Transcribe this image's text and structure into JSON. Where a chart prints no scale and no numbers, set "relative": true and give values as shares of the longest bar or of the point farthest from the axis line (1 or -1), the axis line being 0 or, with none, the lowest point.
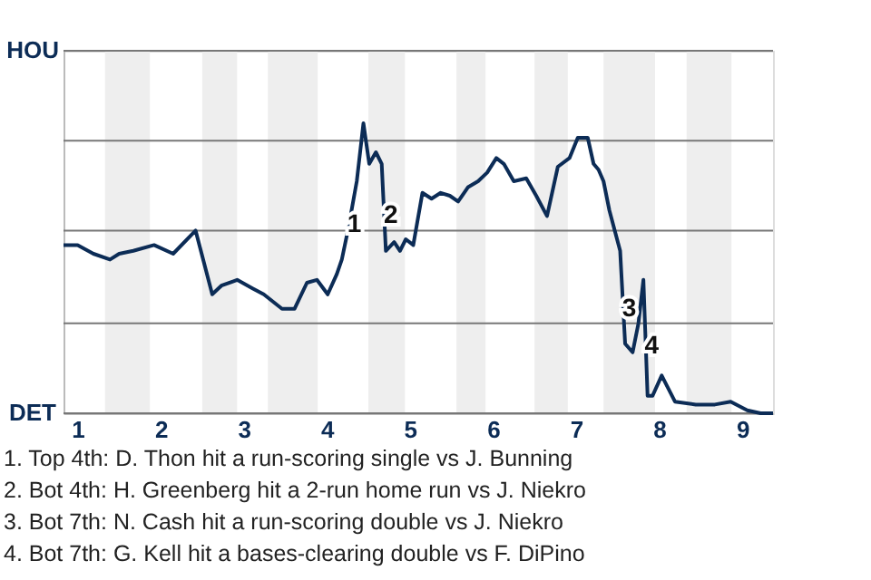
{
  "chart_data": {
    "type": "line",
    "relative": true,
    "x": [
      0.83,
      1,
      1.19,
      1.39,
      1.5,
      1.67,
      1.92,
      2.15,
      2.42,
      2.62,
      2.73,
      2.92,
      3.11,
      3.24,
      3.46,
      3.61,
      3.76,
      3.88,
      4.01,
      4.12,
      4.18,
      4.26,
      4.36,
      4.44,
      4.51,
      4.59,
      4.66,
      4.71,
      4.81,
      4.88,
      4.95,
      5.04,
      5.15,
      5.26,
      5.37,
      5.48,
      5.58,
      5.7,
      5.82,
      5.93,
      6.04,
      6.13,
      6.25,
      6.4,
      6.52,
      6.65,
      6.78,
      6.92,
      7.02,
      7.14,
      7.21,
      7.27,
      7.33,
      7.4,
      7.53,
      7.59,
      7.68,
      7.75,
      7.81,
      7.86,
      7.92,
      8.03,
      8.19,
      8.44,
      8.67,
      8.86,
      9.06,
      9.22,
      9.37
    ],
    "series": [
      {
        "color": "#0c2c56",
        "values": [
          0.58,
          0.58,
          0.55,
          0.53,
          0.55,
          0.56,
          0.58,
          0.55,
          0.63,
          0.41,
          0.44,
          0.46,
          0.43,
          0.41,
          0.36,
          0.36,
          0.45,
          0.46,
          0.41,
          0.48,
          0.53,
          0.64,
          0.8,
          1,
          0.86,
          0.9,
          0.86,
          0.56,
          0.59,
          0.56,
          0.6,
          0.58,
          0.76,
          0.74,
          0.76,
          0.75,
          0.73,
          0.78,
          0.8,
          0.83,
          0.88,
          0.86,
          0.8,
          0.81,
          0.75,
          0.68,
          0.85,
          0.88,
          0.95,
          0.95,
          0.86,
          0.84,
          0.8,
          0.7,
          0.56,
          0.24,
          0.21,
          0.31,
          0.46,
          0.06,
          0.06,
          0.13,
          0.04,
          0.03,
          0.03,
          0.04,
          0.01,
          0,
          0
        ]
      }
    ],
    "xlim": [
      0.83,
      9.37
    ],
    "xticks": [
      1,
      2,
      3,
      4,
      5,
      6,
      7,
      8,
      9
    ],
    "ref_lines": [
      {
        "axis": "y",
        "value": 0,
        "label": "DET",
        "color": "#777777"
      },
      {
        "axis": "y",
        "value": 0.31,
        "color": "#777777"
      },
      {
        "axis": "y",
        "value": 0.63,
        "color": "#777777"
      },
      {
        "axis": "y",
        "value": 0.94,
        "color": "#777777"
      },
      {
        "axis": "y",
        "value": 1.25,
        "label": "HOU",
        "color": "#777777"
      }
    ],
    "marker": "none",
    "line_style": "solid",
    "bands": [
      {
        "axis": "x",
        "from": 1.33,
        "to": 1.87,
        "color": "#eeeeee"
      },
      {
        "axis": "x",
        "from": 2.5,
        "to": 2.92,
        "color": "#eeeeee"
      },
      {
        "axis": "x",
        "from": 3.29,
        "to": 3.89,
        "color": "#eeeeee"
      },
      {
        "axis": "x",
        "from": 4.5,
        "to": 4.94,
        "color": "#eeeeee"
      },
      {
        "axis": "x",
        "from": 5.56,
        "to": 5.91,
        "color": "#eeeeee"
      },
      {
        "axis": "x",
        "from": 6.5,
        "to": 6.9,
        "color": "#eeeeee"
      },
      {
        "axis": "x",
        "from": 7.33,
        "to": 7.95,
        "color": "#eeeeee"
      },
      {
        "axis": "x",
        "from": 8.33,
        "to": 8.87,
        "color": "#eeeeee"
      }
    ],
    "annotations": [
      {
        "text": "1",
        "x": 4.33,
        "y": 0.65
      },
      {
        "text": "2",
        "x": 4.77,
        "y": 0.68
      },
      {
        "text": "3",
        "x": 7.64,
        "y": 0.36
      },
      {
        "text": "4",
        "x": 7.91,
        "y": 0.23
      },
      "1. Top 4th: D. Thon hit a run-scoring single vs J. Bunning",
      "2. Bot 4th: H. Greenberg hit a 2-run home run vs J. Niekro",
      "3. Bot 7th: N. Cash hit a run-scoring double vs J. Niekro",
      "4. Bot 7th: G. Kell hit a bases-clearing double vs F. DiPino"
    ]
  }
}
